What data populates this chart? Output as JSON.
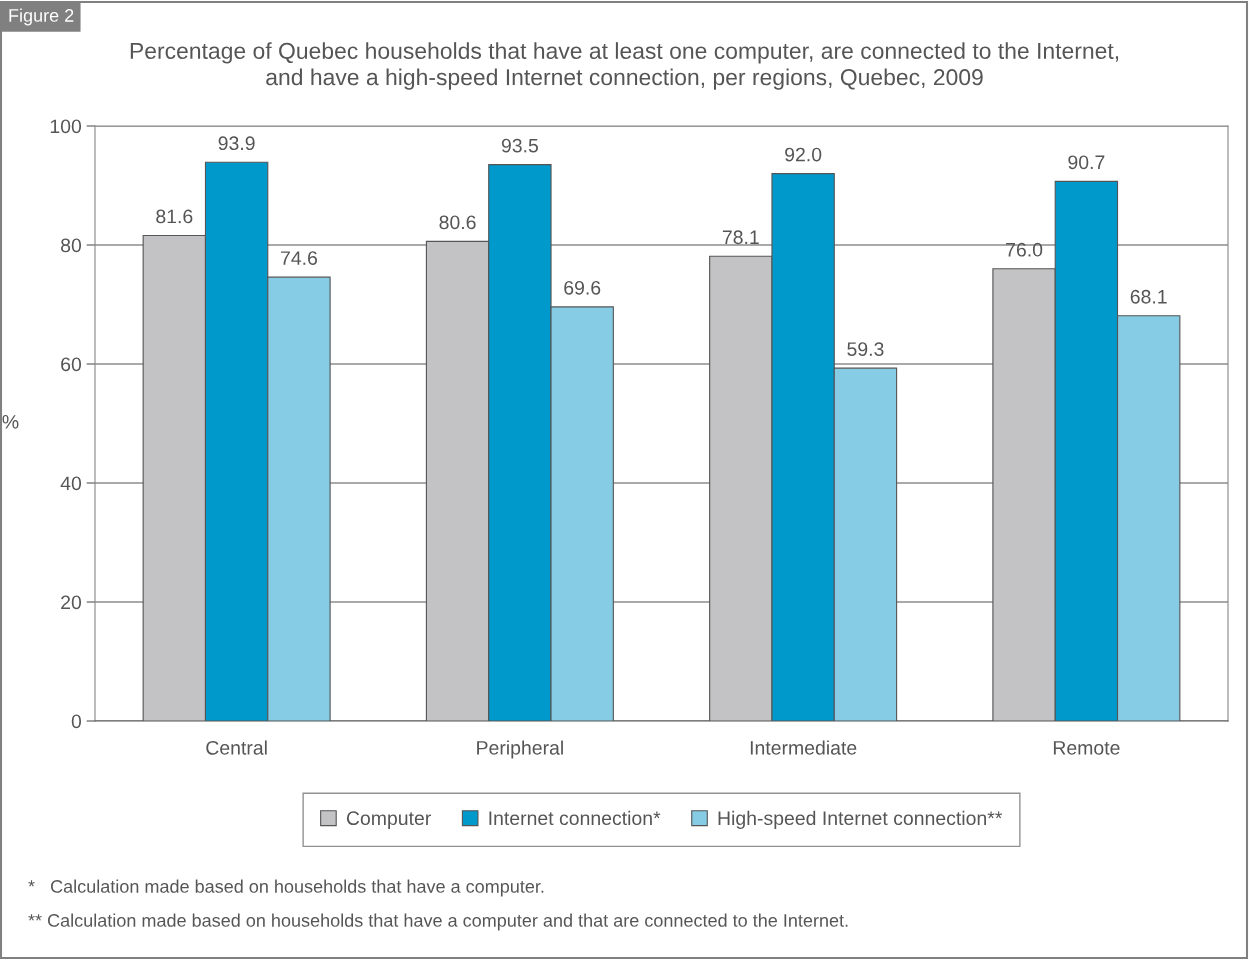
{
  "chart_data": {
    "type": "bar",
    "title": "Percentage of Quebec households that have at least one computer, are connected to the Internet,\nand have a high-speed Internet connection, per regions, Quebec, 2009",
    "ylabel": "%",
    "categories": [
      "Central",
      "Peripheral",
      "Intermediate",
      "Remote"
    ],
    "series": [
      {
        "name": "Computer",
        "color": "#c3c3c5",
        "values": [
          81.6,
          80.6,
          78.1,
          76.0
        ],
        "value_labels": [
          "81.6",
          "80.6",
          "78.1",
          "76.0"
        ]
      },
      {
        "name": "Internet connection*",
        "color": "#0099cc",
        "values": [
          93.9,
          93.5,
          92.0,
          90.7
        ],
        "value_labels": [
          "93.9",
          "93.5",
          "92.0",
          "90.7"
        ]
      },
      {
        "name": "High-speed Internet connection**",
        "color": "#86cce4",
        "values": [
          74.6,
          69.6,
          59.3,
          68.1
        ],
        "value_labels": [
          "74.6",
          "69.6",
          "59.3",
          "68.1"
        ]
      }
    ],
    "ylim": [
      0,
      100
    ],
    "yticks": [
      0,
      20,
      40,
      60,
      80,
      100
    ],
    "grid": "y",
    "legend": "bottom",
    "annotations": [
      "Figure 2",
      "*   Calculation made based on households that have a computer.",
      "** Calculation made based on households that have a computer and that are connected to the Internet."
    ]
  }
}
